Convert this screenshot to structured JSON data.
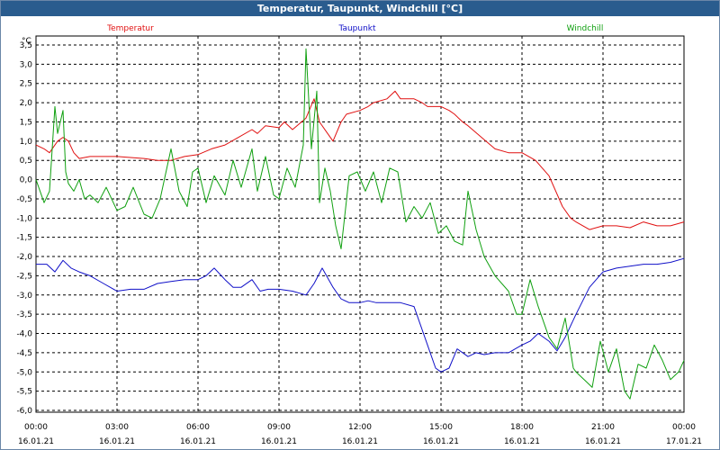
{
  "window": {
    "title": "Temperatur, Taupunkt, Windchill [°C]"
  },
  "chart_data": {
    "type": "line",
    "title": "Temperatur, Taupunkt, Windchill [°C]",
    "ylabel": "°C",
    "ylim": [
      -6.0,
      3.5
    ],
    "xlim": [
      0,
      24
    ],
    "grid": true,
    "legend_placement": "top",
    "y_ticks": [
      "3,5",
      "3,0",
      "2,5",
      "2,0",
      "1,5",
      "1,0",
      "0,5",
      "0,0",
      "-0,5",
      "-1,0",
      "-1,5",
      "-2,0",
      "-2,5",
      "-3,0",
      "-3,5",
      "-4,0",
      "-4,5",
      "-5,0",
      "-5,5",
      "-6,0"
    ],
    "x_ticks": [
      {
        "time": "00:00",
        "date": "16.01.21"
      },
      {
        "time": "03:00",
        "date": "16.01.21"
      },
      {
        "time": "06:00",
        "date": "16.01.21"
      },
      {
        "time": "09:00",
        "date": "16.01.21"
      },
      {
        "time": "12:00",
        "date": "16.01.21"
      },
      {
        "time": "15:00",
        "date": "16.01.21"
      },
      {
        "time": "18:00",
        "date": "16.01.21"
      },
      {
        "time": "21:00",
        "date": "16.01.21"
      },
      {
        "time": "00:00",
        "date": "17.01.21"
      }
    ],
    "series": [
      {
        "name": "Temperatur",
        "color": "#e01010",
        "x": [
          0,
          0.3,
          0.5,
          0.8,
          1,
          1.2,
          1.4,
          1.6,
          2,
          3,
          4,
          4.5,
          5,
          5.5,
          6,
          6.5,
          7,
          7.5,
          8,
          8.2,
          8.5,
          9,
          9.2,
          9.5,
          10,
          10.3,
          10.5,
          10.8,
          11,
          11.3,
          11.5,
          12,
          12.3,
          12.5,
          13,
          13.3,
          13.5,
          14,
          14.3,
          14.5,
          15,
          15.3,
          15.5,
          15.8,
          16,
          16.5,
          17,
          17.5,
          18,
          18.5,
          19,
          19.5,
          19.8,
          20,
          20.5,
          21,
          21.5,
          22,
          22.5,
          23,
          23.5,
          24
        ],
        "y": [
          0.9,
          0.8,
          0.7,
          1.0,
          1.1,
          1.0,
          0.7,
          0.55,
          0.6,
          0.6,
          0.55,
          0.5,
          0.5,
          0.6,
          0.65,
          0.8,
          0.9,
          1.1,
          1.3,
          1.2,
          1.4,
          1.35,
          1.5,
          1.3,
          1.6,
          2.1,
          1.5,
          1.2,
          1.0,
          1.5,
          1.7,
          1.8,
          1.9,
          2.0,
          2.1,
          2.3,
          2.1,
          2.1,
          2.0,
          1.9,
          1.9,
          1.8,
          1.7,
          1.5,
          1.4,
          1.1,
          0.8,
          0.7,
          0.7,
          0.5,
          0.1,
          -0.7,
          -1.0,
          -1.1,
          -1.3,
          -1.2,
          -1.2,
          -1.25,
          -1.1,
          -1.2,
          -1.2,
          -1.1
        ]
      },
      {
        "name": "Taupunkt",
        "color": "#1010c8",
        "x": [
          0,
          0.4,
          0.7,
          1,
          1.3,
          1.6,
          2,
          2.5,
          3,
          3.5,
          4,
          4.5,
          5,
          5.5,
          6,
          6.3,
          6.6,
          7,
          7.3,
          7.6,
          8,
          8.3,
          8.6,
          9,
          9.5,
          10,
          10.3,
          10.6,
          11,
          11.3,
          11.6,
          12,
          12.3,
          12.6,
          13,
          13.5,
          14,
          14.5,
          14.8,
          15,
          15.3,
          15.6,
          16,
          16.3,
          16.6,
          17,
          17.5,
          18,
          18.3,
          18.6,
          19,
          19.3,
          19.6,
          20,
          20.5,
          21,
          21.5,
          22,
          22.5,
          23,
          23.5,
          24
        ],
        "y": [
          -2.2,
          -2.2,
          -2.4,
          -2.1,
          -2.3,
          -2.4,
          -2.5,
          -2.7,
          -2.9,
          -2.85,
          -2.85,
          -2.7,
          -2.65,
          -2.6,
          -2.6,
          -2.5,
          -2.3,
          -2.6,
          -2.8,
          -2.8,
          -2.6,
          -2.9,
          -2.85,
          -2.85,
          -2.9,
          -3.0,
          -2.7,
          -2.3,
          -2.8,
          -3.1,
          -3.2,
          -3.2,
          -3.15,
          -3.2,
          -3.2,
          -3.2,
          -3.3,
          -4.3,
          -4.9,
          -5.0,
          -4.9,
          -4.4,
          -4.6,
          -4.5,
          -4.55,
          -4.5,
          -4.5,
          -4.3,
          -4.2,
          -4.0,
          -4.2,
          -4.45,
          -4.1,
          -3.5,
          -2.8,
          -2.4,
          -2.3,
          -2.25,
          -2.2,
          -2.2,
          -2.15,
          -2.05
        ]
      },
      {
        "name": "Windchill",
        "color": "#10a010",
        "x": [
          0,
          0.3,
          0.5,
          0.7,
          0.8,
          1,
          1.1,
          1.2,
          1.4,
          1.6,
          1.8,
          2,
          2.3,
          2.6,
          3,
          3.3,
          3.6,
          4,
          4.3,
          4.6,
          5,
          5.3,
          5.6,
          5.8,
          6,
          6.3,
          6.6,
          7,
          7.3,
          7.6,
          8,
          8.2,
          8.5,
          8.8,
          9,
          9.3,
          9.6,
          9.9,
          10,
          10.2,
          10.4,
          10.5,
          10.7,
          10.9,
          11.1,
          11.3,
          11.6,
          11.9,
          12.2,
          12.5,
          12.8,
          13.1,
          13.4,
          13.7,
          14,
          14.3,
          14.6,
          14.9,
          15.2,
          15.5,
          15.8,
          16,
          16.3,
          16.6,
          17,
          17.5,
          17.8,
          18,
          18.3,
          18.6,
          19,
          19.3,
          19.6,
          19.9,
          20,
          20.3,
          20.6,
          20.9,
          21.2,
          21.5,
          21.8,
          22,
          22.3,
          22.6,
          22.9,
          23.2,
          23.5,
          23.8,
          24
        ],
        "y": [
          0.0,
          -0.6,
          -0.3,
          1.9,
          1.2,
          1.8,
          0.2,
          -0.1,
          -0.3,
          0.0,
          -0.5,
          -0.4,
          -0.6,
          -0.2,
          -0.8,
          -0.7,
          -0.2,
          -0.9,
          -1.0,
          -0.5,
          0.8,
          -0.3,
          -0.7,
          0.2,
          0.3,
          -0.6,
          0.1,
          -0.4,
          0.5,
          -0.2,
          0.8,
          -0.3,
          0.6,
          -0.4,
          -0.5,
          0.3,
          -0.2,
          0.9,
          3.4,
          0.8,
          2.3,
          -0.6,
          0.3,
          -0.3,
          -1.2,
          -1.8,
          0.1,
          0.2,
          -0.3,
          0.2,
          -0.6,
          0.3,
          0.2,
          -1.1,
          -0.7,
          -1.0,
          -0.6,
          -1.4,
          -1.2,
          -1.6,
          -1.7,
          -0.3,
          -1.3,
          -2.0,
          -2.5,
          -2.9,
          -3.5,
          -3.5,
          -2.6,
          -3.3,
          -4.1,
          -4.4,
          -3.6,
          -4.9,
          -5.0,
          -5.2,
          -5.4,
          -4.2,
          -5.0,
          -4.4,
          -5.5,
          -5.7,
          -4.8,
          -4.9,
          -4.3,
          -4.7,
          -5.2,
          -5.0,
          -4.7
        ]
      }
    ]
  }
}
